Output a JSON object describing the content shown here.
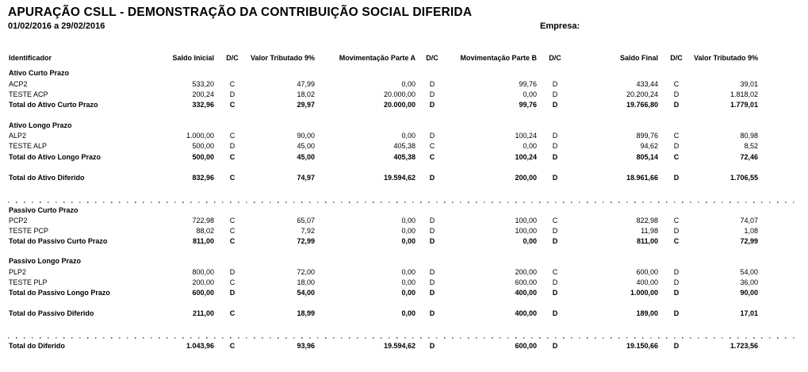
{
  "report": {
    "title": "APURAÇÃO CSLL - DEMONSTRAÇÃO DA CONTRIBUIÇÃO SOCIAL DIFERIDA",
    "period": "01/02/2016 a 29/02/2016",
    "empresa_label": "Empresa:"
  },
  "columns": [
    "Identificador",
    "Saldo Inicial",
    "D/C",
    "Valor Tributado 9%",
    "Movimentação Parte A",
    "D/C",
    "Movimentação Parte B",
    "D/C",
    "Saldo Final",
    "D/C",
    "Valor Tributado 9%"
  ],
  "rows": [
    {
      "type": "group",
      "label": "Ativo Curto Prazo"
    },
    {
      "type": "item",
      "cells": [
        "ACP2",
        "533,20",
        "C",
        "47,99",
        "0,00",
        "D",
        "99,76",
        "D",
        "433,44",
        "C",
        "39,01"
      ]
    },
    {
      "type": "item",
      "cells": [
        "TESTE ACP",
        "200,24",
        "D",
        "18,02",
        "20.000,00",
        "D",
        "0,00",
        "D",
        "20.200,24",
        "D",
        "1.818,02"
      ]
    },
    {
      "type": "total",
      "cells": [
        "Total do Ativo Curto Prazo",
        "332,96",
        "C",
        "29,97",
        "20.000,00",
        "D",
        "99,76",
        "D",
        "19.766,80",
        "D",
        "1.779,01"
      ]
    },
    {
      "type": "group",
      "label": "Ativo Longo Prazo"
    },
    {
      "type": "item",
      "cells": [
        "ALP2",
        "1.000,00",
        "C",
        "90,00",
        "0,00",
        "D",
        "100,24",
        "D",
        "899,76",
        "C",
        "80,98"
      ]
    },
    {
      "type": "item",
      "cells": [
        "TESTE ALP",
        "500,00",
        "D",
        "45,00",
        "405,38",
        "C",
        "0,00",
        "D",
        "94,62",
        "D",
        "8,52"
      ]
    },
    {
      "type": "total",
      "cells": [
        "Total do Ativo Longo Prazo",
        "500,00",
        "C",
        "45,00",
        "405,38",
        "C",
        "100,24",
        "D",
        "805,14",
        "C",
        "72,46"
      ]
    },
    {
      "type": "total",
      "cells": [
        "Total do Ativo Diferido",
        "832,96",
        "C",
        "74,97",
        "19.594,62",
        "D",
        "200,00",
        "D",
        "18.961,66",
        "D",
        "1.706,55"
      ]
    },
    {
      "type": "separator"
    },
    {
      "type": "group",
      "label": "Passivo Curto Prazo"
    },
    {
      "type": "item",
      "cells": [
        "PCP2",
        "722,98",
        "C",
        "65,07",
        "0,00",
        "D",
        "100,00",
        "C",
        "822,98",
        "C",
        "74,07"
      ]
    },
    {
      "type": "item",
      "cells": [
        "TESTE PCP",
        "88,02",
        "C",
        "7,92",
        "0,00",
        "D",
        "100,00",
        "D",
        "11,98",
        "D",
        "1,08"
      ]
    },
    {
      "type": "total",
      "cells": [
        "Total do Passivo Curto Prazo",
        "811,00",
        "C",
        "72,99",
        "0,00",
        "D",
        "0,00",
        "D",
        "811,00",
        "C",
        "72,99"
      ]
    },
    {
      "type": "group",
      "label": "Passivo Longo Prazo"
    },
    {
      "type": "item",
      "cells": [
        "PLP2",
        "800,00",
        "D",
        "72,00",
        "0,00",
        "D",
        "200,00",
        "C",
        "600,00",
        "D",
        "54,00"
      ]
    },
    {
      "type": "item",
      "cells": [
        "TESTE PLP",
        "200,00",
        "C",
        "18,00",
        "0,00",
        "D",
        "600,00",
        "D",
        "400,00",
        "D",
        "36,00"
      ]
    },
    {
      "type": "total",
      "cells": [
        "Total do Passivo Longo Prazo",
        "600,00",
        "D",
        "54,00",
        "0,00",
        "D",
        "400,00",
        "D",
        "1.000,00",
        "D",
        "90,00"
      ]
    },
    {
      "type": "total",
      "cells": [
        "Total do Passivo Diferido",
        "211,00",
        "C",
        "18,99",
        "0,00",
        "D",
        "400,00",
        "D",
        "189,00",
        "D",
        "17,01"
      ]
    },
    {
      "type": "separator"
    },
    {
      "type": "total",
      "cells": [
        "Total do Diferido",
        "1.043,96",
        "C",
        "93,96",
        "19.594,62",
        "D",
        "600,00",
        "D",
        "19.150,66",
        "D",
        "1.723,56"
      ]
    }
  ]
}
